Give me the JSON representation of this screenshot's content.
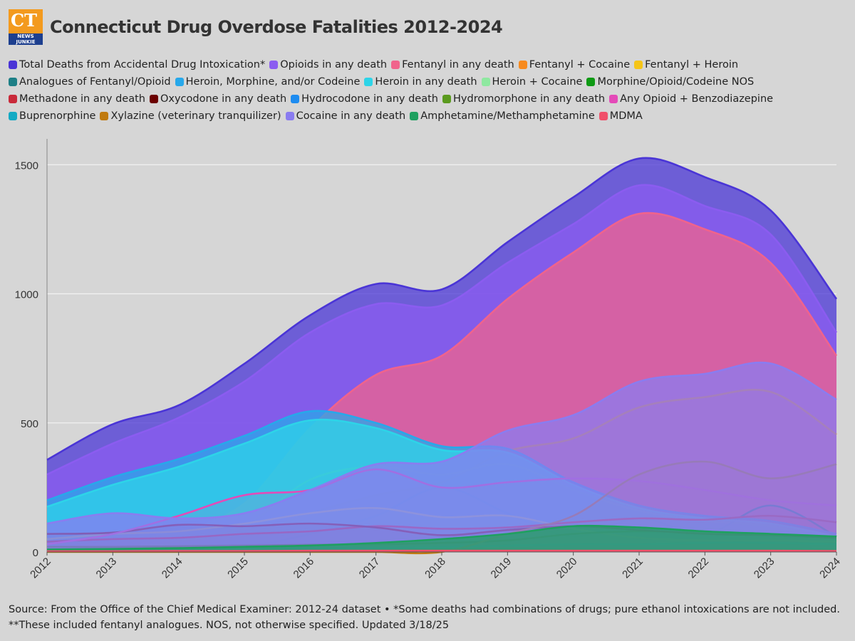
{
  "header": {
    "logo_text": "CT",
    "logo_subtext": "NEWS JUNKIE",
    "title": "Connecticut Drug Overdose Fatalities 2012-2024"
  },
  "chart_data": {
    "type": "area",
    "title": "Connecticut Drug Overdose Fatalities 2012-2024",
    "x": [
      "2012",
      "2013",
      "2014",
      "2015",
      "2016",
      "2017",
      "2018",
      "2019",
      "2020",
      "2021",
      "2022",
      "2023",
      "2024"
    ],
    "ylim": [
      0,
      1600
    ],
    "yticks": [
      0,
      500,
      1000,
      1500
    ],
    "grid": true,
    "series": [
      {
        "name": "Total Deaths from Accidental Drug Intoxication*",
        "color": "#4a35d6",
        "fill": true,
        "values": [
          357,
          495,
          568,
          729,
          917,
          1038,
          1017,
          1200,
          1374,
          1524,
          1452,
          1323,
          980
        ]
      },
      {
        "name": "Opioids in any death",
        "color": "#8b5cf0",
        "fill": true,
        "values": [
          300,
          420,
          520,
          660,
          850,
          960,
          955,
          1120,
          1270,
          1420,
          1340,
          1230,
          850
        ]
      },
      {
        "name": "Fentanyl in any death",
        "color": "#f0638c",
        "fill": true,
        "values": [
          14,
          37,
          79,
          188,
          479,
          686,
          760,
          980,
          1160,
          1310,
          1250,
          1120,
          760
        ]
      },
      {
        "name": "Fentanyl + Cocaine",
        "color": "#f78a1e",
        "fill": false,
        "values": [
          5,
          10,
          20,
          60,
          150,
          220,
          270,
          390,
          440,
          560,
          600,
          620,
          455
        ]
      },
      {
        "name": "Fentanyl + Heroin",
        "color": "#f5c518",
        "fill": false,
        "values": [
          4,
          15,
          40,
          100,
          280,
          330,
          300,
          340,
          240,
          160,
          120,
          100,
          40
        ]
      },
      {
        "name": "Analogues of Fentanyl/Opioid",
        "color": "#1e7f86",
        "fill": false,
        "values": [
          5,
          5,
          5,
          20,
          70,
          140,
          250,
          150,
          60,
          130,
          70,
          180,
          60
        ]
      },
      {
        "name": "Heroin, Morphine, and/or Codeine",
        "color": "#27a8ea",
        "fill": true,
        "values": [
          200,
          290,
          360,
          450,
          545,
          500,
          410,
          400,
          270,
          180,
          140,
          120,
          70
        ]
      },
      {
        "name": "Heroin in any death",
        "color": "#2dd4e8",
        "fill": true,
        "values": [
          175,
          260,
          330,
          420,
          510,
          480,
          395,
          385,
          260,
          170,
          130,
          110,
          60
        ]
      },
      {
        "name": "Heroin + Cocaine",
        "color": "#8ee8a0",
        "fill": false,
        "values": [
          50,
          70,
          80,
          110,
          150,
          170,
          135,
          140,
          90,
          55,
          45,
          45,
          40
        ]
      },
      {
        "name": "Morphine/Opioid/Codeine NOS",
        "color": "#0f9a14",
        "fill": false,
        "values": [
          20,
          20,
          22,
          25,
          28,
          30,
          35,
          45,
          70,
          80,
          75,
          65,
          60
        ]
      },
      {
        "name": "Methadone in any death",
        "color": "#c92a3a",
        "fill": false,
        "values": [
          40,
          50,
          55,
          70,
          80,
          100,
          90,
          95,
          115,
          130,
          125,
          140,
          115
        ]
      },
      {
        "name": "Oxycodone in any death",
        "color": "#6b0000",
        "fill": false,
        "values": [
          70,
          75,
          105,
          100,
          110,
          95,
          65,
          85,
          100,
          85,
          70,
          65,
          55
        ]
      },
      {
        "name": "Hydrocodone in any death",
        "color": "#1e8cf0",
        "fill": false,
        "values": [
          10,
          12,
          14,
          16,
          18,
          15,
          12,
          10,
          10,
          8,
          8,
          8,
          6
        ]
      },
      {
        "name": "Hydromorphone in any death",
        "color": "#5a9a1e",
        "fill": false,
        "values": [
          8,
          10,
          12,
          12,
          14,
          14,
          12,
          12,
          10,
          10,
          10,
          10,
          8
        ]
      },
      {
        "name": "Any Opioid + Benzodiazepine",
        "color": "#e44ab8",
        "fill": false,
        "values": [
          30,
          70,
          140,
          220,
          240,
          320,
          250,
          270,
          285,
          275,
          240,
          200,
          180
        ]
      },
      {
        "name": "Buprenorphine",
        "color": "#14aac4",
        "fill": false,
        "values": [
          5,
          5,
          8,
          10,
          12,
          15,
          18,
          25,
          30,
          30,
          35,
          35,
          30
        ]
      },
      {
        "name": "Xylazine (veterinary tranquilizer)",
        "color": "#c07a10",
        "fill": false,
        "values": [
          0,
          0,
          0,
          0,
          0,
          0,
          0,
          70,
          140,
          300,
          350,
          285,
          340
        ]
      },
      {
        "name": "Cocaine in any death",
        "color": "#8a7cf0",
        "fill": true,
        "values": [
          110,
          150,
          130,
          150,
          240,
          340,
          350,
          470,
          530,
          660,
          690,
          730,
          590
        ]
      },
      {
        "name": "Amphetamine/Methamphetamine",
        "color": "#1fa060",
        "fill": true,
        "values": [
          10,
          12,
          15,
          20,
          25,
          35,
          50,
          70,
          100,
          95,
          80,
          70,
          60
        ]
      },
      {
        "name": "MDMA",
        "color": "#f0506a",
        "fill": false,
        "values": [
          3,
          3,
          4,
          4,
          5,
          5,
          5,
          5,
          5,
          5,
          5,
          5,
          4
        ]
      }
    ]
  },
  "source": "Source: From the Office of the Chief Medical Examiner: 2012-24 dataset • *Some deaths had combinations of drugs; pure ethanol intoxications are not included. **These included fentanyl analogues. NOS, not otherwise specified. Updated 3/18/25"
}
